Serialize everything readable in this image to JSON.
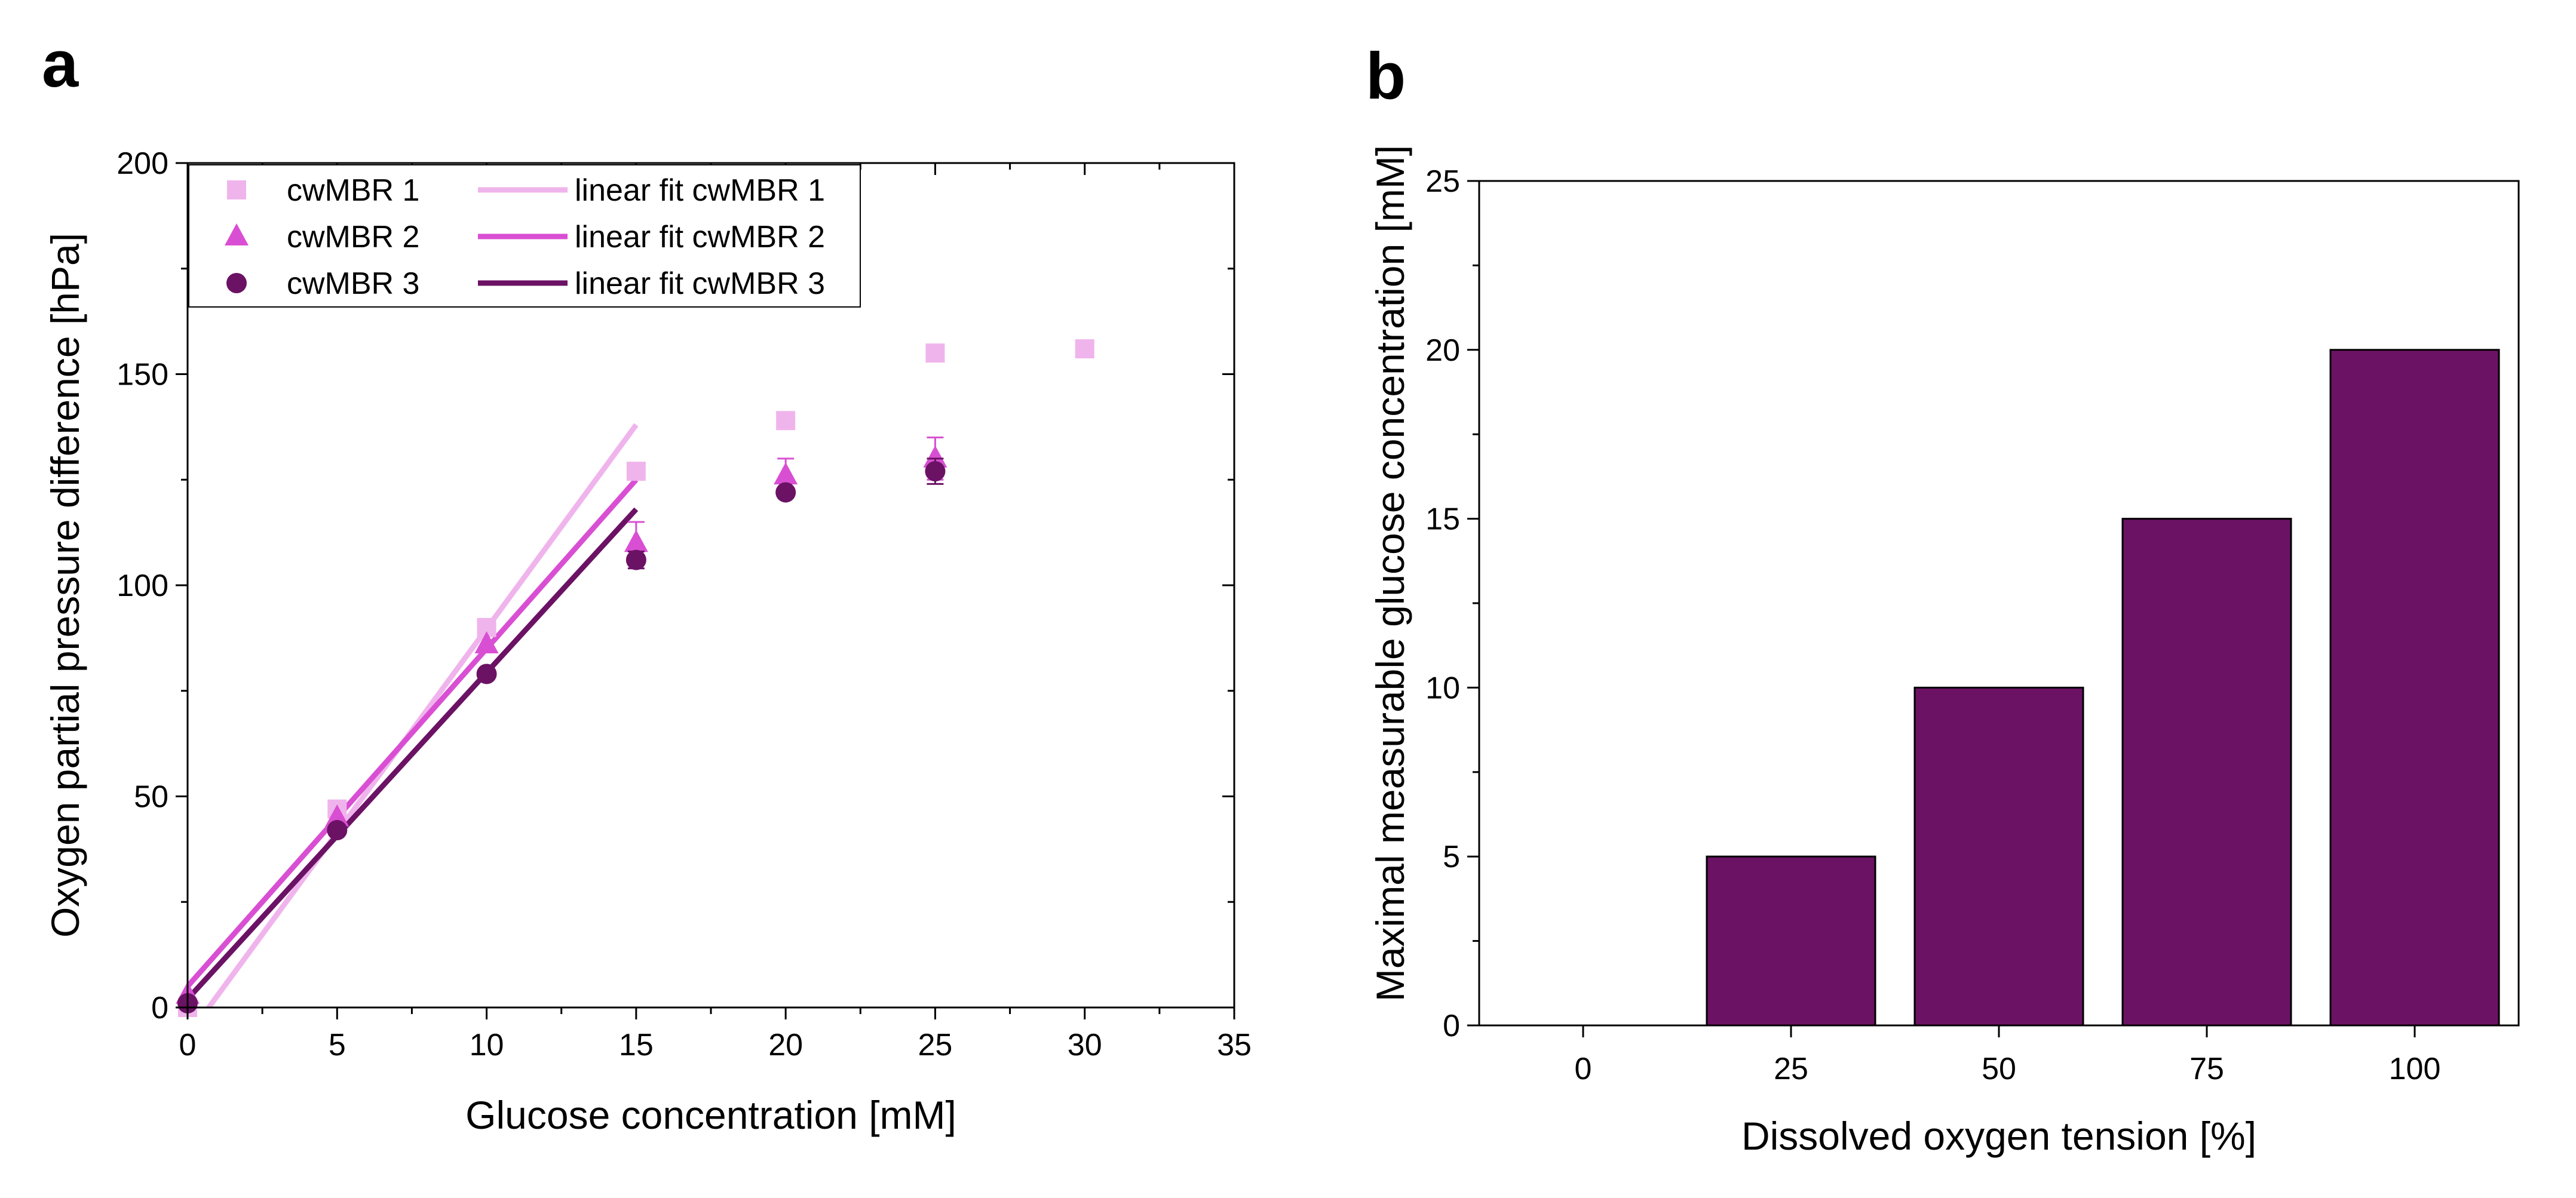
{
  "chart_data": [
    {
      "panel": "a",
      "type": "scatter",
      "title": "",
      "xlabel": "Glucose concentration [mM]",
      "ylabel": "Oxygen partial pressure difference [hPa]",
      "xlim": [
        0,
        35
      ],
      "ylim": [
        0,
        200
      ],
      "xticks": [
        0,
        5,
        10,
        15,
        20,
        25,
        30,
        35
      ],
      "yticks": [
        0,
        50,
        100,
        150,
        200
      ],
      "legend_position": "top-left",
      "series": [
        {
          "name": "cwMBR 1",
          "marker": "square",
          "color": "#f0b4ec",
          "x": [
            0,
            5,
            10,
            15,
            20,
            25,
            30
          ],
          "y": [
            0,
            47,
            90,
            127,
            139,
            155,
            156
          ],
          "err": [
            0,
            0,
            0,
            0,
            0,
            0,
            0
          ]
        },
        {
          "name": "cwMBR 2",
          "marker": "triangle",
          "color": "#d94fd3",
          "x": [
            0,
            5,
            10,
            15,
            20,
            25
          ],
          "y": [
            3,
            45,
            86,
            110,
            126,
            130
          ],
          "err": [
            0,
            0,
            0,
            5,
            4,
            5
          ]
        },
        {
          "name": "cwMBR 3",
          "marker": "circle",
          "color": "#6b1265",
          "x": [
            0,
            5,
            10,
            15,
            20,
            25
          ],
          "y": [
            1,
            42,
            79,
            106,
            122,
            127
          ],
          "err": [
            0,
            0,
            0,
            2,
            0,
            3
          ]
        }
      ],
      "fits": [
        {
          "name": "linear fit cwMBR 1",
          "color": "#f0b4ec",
          "x": [
            0.5,
            15
          ],
          "y": [
            -2,
            138
          ]
        },
        {
          "name": "linear fit cwMBR 2",
          "color": "#d94fd3",
          "x": [
            0,
            15
          ],
          "y": [
            5,
            125
          ]
        },
        {
          "name": "linear fit cwMBR 3",
          "color": "#6b1265",
          "x": [
            0,
            15
          ],
          "y": [
            2,
            118
          ]
        }
      ]
    },
    {
      "panel": "b",
      "type": "bar",
      "title": "",
      "xlabel": "Dissolved oxygen tension [%]",
      "ylabel": "Maximal measurable glucose concentration [mM]",
      "categories": [
        "0",
        "25",
        "50",
        "75",
        "100"
      ],
      "values": [
        0,
        5,
        10,
        15,
        20
      ],
      "ylim": [
        0,
        25
      ],
      "yticks": [
        0,
        5,
        10,
        15,
        20,
        25
      ],
      "bar_color": "#6b1265"
    }
  ]
}
